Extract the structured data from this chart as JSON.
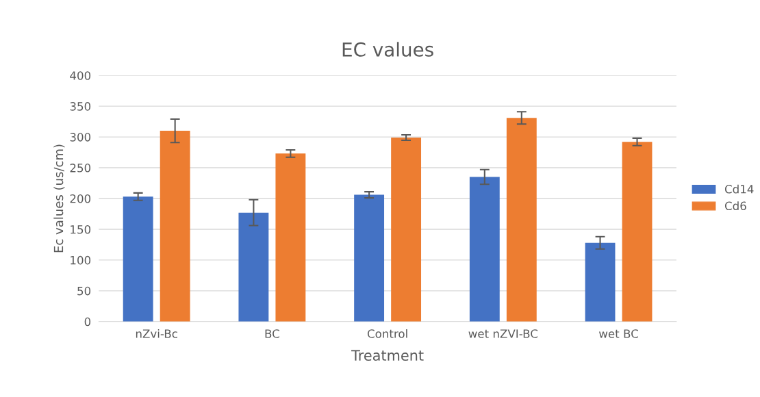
{
  "chart_data": {
    "type": "bar",
    "title": "EC values",
    "xlabel": "Treatment",
    "ylabel": "Ec values (us/cm)",
    "categories": [
      "nZvi-Bc",
      "BC",
      "Control",
      "wet nZVI-BC",
      "wet BC"
    ],
    "series": [
      {
        "name": "Cd14",
        "color": "#4472c4",
        "values": [
          203,
          177,
          206,
          235,
          128
        ],
        "errors": [
          6,
          21,
          5,
          12,
          10
        ]
      },
      {
        "name": "Cd6",
        "color": "#ed7d31",
        "values": [
          310,
          273,
          299,
          331,
          292
        ],
        "errors": [
          19,
          6,
          4.5,
          10,
          6
        ]
      }
    ],
    "ylim": [
      0,
      400
    ],
    "yticks": [
      0,
      50,
      100,
      150,
      200,
      250,
      300,
      350,
      400
    ],
    "grid": "y",
    "legend": "right"
  }
}
